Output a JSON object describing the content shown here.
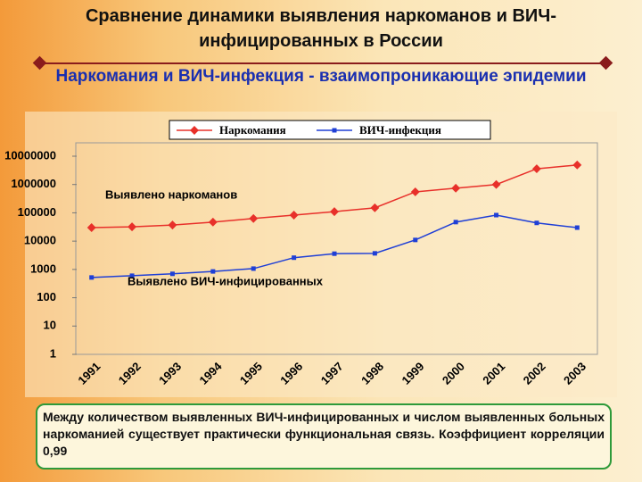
{
  "slide": {
    "title": "Сравнение динамики выявления наркоманов и ВИЧ-инфицированных в России",
    "subtitle": "Наркомания и ВИЧ-инфекция - взаимопроникающие эпидемии",
    "note": "Между количеством выявленных ВИЧ-инфицированных и числом выявленных больных наркоманией существует практически функциональная связь. Коэффициент корреляции 0,99"
  },
  "chart_data": {
    "type": "line",
    "log_scale": true,
    "categories": [
      "1991",
      "1992",
      "1993",
      "1994",
      "1995",
      "1996",
      "1997",
      "1998",
      "1999",
      "2000",
      "2001",
      "2002",
      "2003"
    ],
    "series": [
      {
        "name": "Наркомания",
        "color": "#e8302a",
        "marker": "diamond",
        "values": [
          30000,
          32000,
          37000,
          47000,
          63000,
          83000,
          110000,
          150000,
          550000,
          740000,
          1000000,
          3600000,
          4900000
        ]
      },
      {
        "name": "ВИЧ-инфекция",
        "color": "#1f3fd6",
        "marker": "square",
        "values": [
          520,
          600,
          700,
          850,
          1070,
          2600,
          3600,
          3700,
          11000,
          47000,
          83000,
          44000,
          30000
        ]
      }
    ],
    "annotations": [
      "Выявлено наркоманов",
      "Выявлено ВИЧ-инфицированных"
    ],
    "ylim": [
      1,
      10000000
    ],
    "yticks": [
      1,
      10,
      100,
      1000,
      10000,
      100000,
      1000000,
      10000000
    ],
    "legend": "top"
  }
}
